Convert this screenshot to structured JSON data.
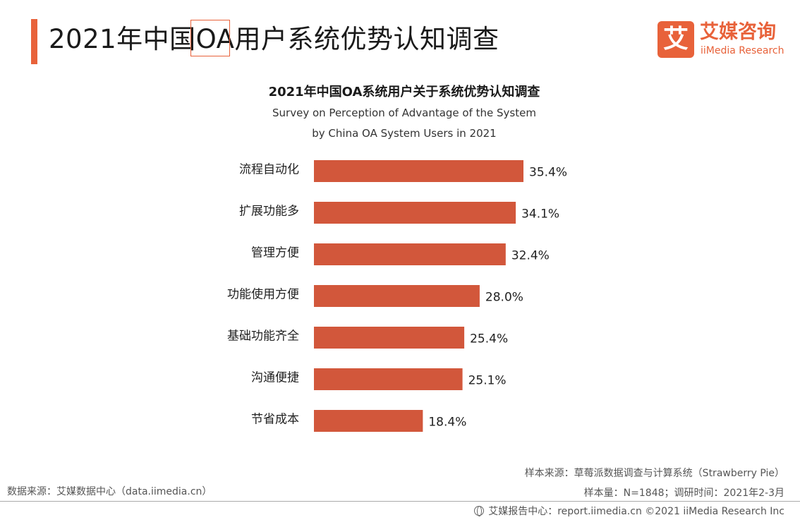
{
  "header": {
    "title": "2021年中国OA用户系统优势认知调查"
  },
  "logo": {
    "mark": "艾",
    "name_cn": "艾媒咨询",
    "name_en": "iiMedia Research"
  },
  "colors": {
    "accent": "#e8623a",
    "bar": "#d2573b"
  },
  "chart_data": {
    "type": "bar",
    "orientation": "horizontal",
    "title": "2021年中国OA系统用户关于系统优势认知调查",
    "subtitle": [
      "Survey on Perception of Advantage of the System",
      "by China OA System Users in 2021"
    ],
    "categories": [
      "流程自动化",
      "扩展功能多",
      "管理方便",
      "功能使用方便",
      "基础功能齐全",
      "沟通便捷",
      "节省成本"
    ],
    "values": [
      35.4,
      34.1,
      32.4,
      28.0,
      25.4,
      25.1,
      18.4
    ],
    "value_labels": [
      "35.4%",
      "34.1%",
      "32.4%",
      "28.0%",
      "25.4%",
      "25.1%",
      "18.4%"
    ],
    "xlabel": "",
    "ylabel": "",
    "xlim": [
      0,
      40
    ],
    "grid": false,
    "legend": "none"
  },
  "footer": {
    "sample_source": "样本来源：草莓派数据调查与计算系统（Strawberry Pie）",
    "sample_info": "样本量：N=1848；调研时间：2021年2-3月",
    "data_source": "数据来源：艾媒数据中心（data.iimedia.cn）",
    "report_center": "艾媒报告中心：report.iimedia.cn ©2021 iiMedia Research Inc"
  }
}
